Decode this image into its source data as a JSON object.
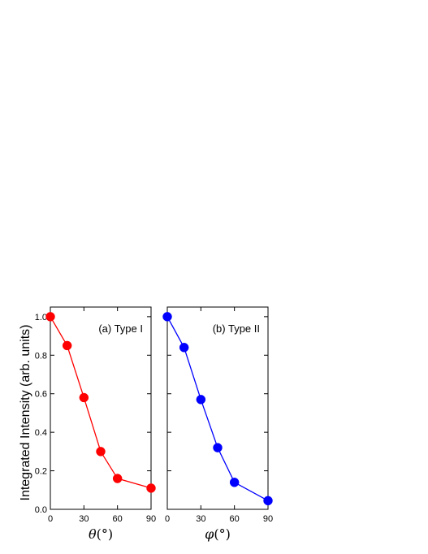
{
  "figure": {
    "ylabel": "Integrated Intensity (arb. units)"
  },
  "chart_data": [
    {
      "type": "line",
      "annotation": "(a) Type I",
      "xlabel_symbol": "θ",
      "xlabel_unit": "(°)",
      "x": [
        0,
        15,
        30,
        45,
        60,
        90
      ],
      "series": [
        {
          "values": [
            1.0,
            0.85,
            0.58,
            0.3,
            0.16,
            0.11
          ],
          "color": "#ff0000"
        }
      ],
      "xlim": [
        0,
        90
      ],
      "ylim": [
        0,
        1.05
      ],
      "xticks": [
        0,
        30,
        60,
        90
      ],
      "yticks": [
        0.0,
        0.2,
        0.4,
        0.6,
        0.8,
        1.0
      ],
      "ytick_labels": [
        "0.0",
        "0.2",
        "0.4",
        "0.6",
        "0.8",
        "1.0"
      ],
      "grid": false,
      "marker": "circle"
    },
    {
      "type": "line",
      "annotation": "(b) Type II",
      "xlabel_symbol": "φ",
      "xlabel_unit": "(°)",
      "x": [
        0,
        15,
        30,
        45,
        60,
        90
      ],
      "series": [
        {
          "values": [
            1.0,
            0.84,
            0.57,
            0.32,
            0.14,
            0.045
          ],
          "color": "#0000ff"
        }
      ],
      "xlim": [
        0,
        90
      ],
      "ylim": [
        0,
        1.05
      ],
      "xticks": [
        0,
        30,
        60,
        90
      ],
      "yticks": [
        0.0,
        0.2,
        0.4,
        0.6,
        0.8,
        1.0
      ],
      "grid": false,
      "marker": "circle"
    }
  ]
}
